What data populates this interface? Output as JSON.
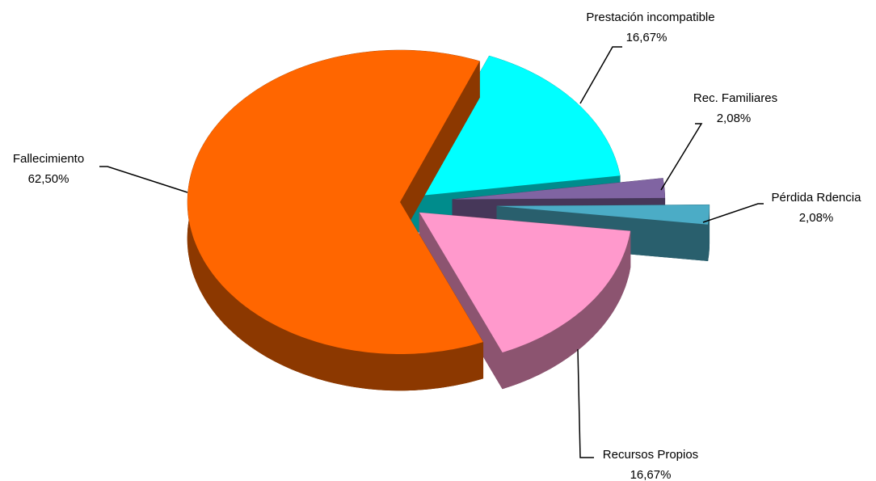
{
  "chart_data": {
    "type": "pie3d",
    "categories": [
      "Prestación incompatible",
      "Rec. Familiares",
      "Pérdida Rdencia",
      "Recursos Propios",
      "Fallecimiento"
    ],
    "values": [
      16.67,
      2.08,
      2.08,
      16.67,
      62.5
    ],
    "value_labels": [
      "16,67%",
      "2,08%",
      "2,08%",
      "16,67%",
      "62,50%"
    ],
    "colors": [
      "#00ffff",
      "#8064a2",
      "#4bacc6",
      "#ff99cc",
      "#ff6600"
    ]
  }
}
